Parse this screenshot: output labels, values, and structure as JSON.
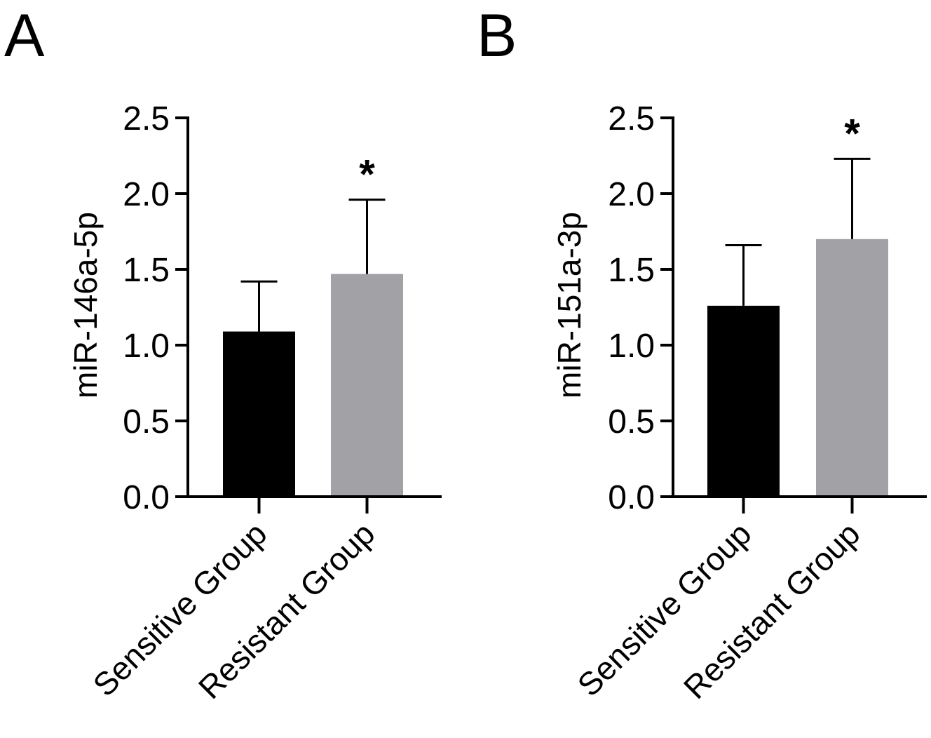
{
  "chart_data": [
    {
      "type": "bar",
      "panel_label": "A",
      "categories": [
        "Sensitive Group",
        "Resistant Group"
      ],
      "values": [
        1.09,
        1.47
      ],
      "error_upper": [
        1.42,
        1.96
      ],
      "ylabel": "miR-146a-5p",
      "xlabel": "",
      "ylim": [
        0,
        2.5
      ],
      "yticks": [
        0,
        0.5,
        1.0,
        1.5,
        2.0,
        2.5
      ],
      "ytick_labels": [
        "0.0",
        "0.5",
        "1.0",
        "1.5",
        "2.0",
        "2.5"
      ],
      "annotations": [
        "",
        "*"
      ],
      "colors": [
        "#000000",
        "#a2a1a6"
      ],
      "grid": false,
      "legend": "none"
    },
    {
      "type": "bar",
      "panel_label": "B",
      "categories": [
        "Sensitive Group",
        "Resistant Group"
      ],
      "values": [
        1.26,
        1.7
      ],
      "error_upper": [
        1.66,
        2.23
      ],
      "ylabel": "miR-151a-3p",
      "xlabel": "",
      "ylim": [
        0,
        2.5
      ],
      "yticks": [
        0,
        0.5,
        1.0,
        1.5,
        2.0,
        2.5
      ],
      "ytick_labels": [
        "0.0",
        "0.5",
        "1.0",
        "1.5",
        "2.0",
        "2.5"
      ],
      "annotations": [
        "",
        "*"
      ],
      "colors": [
        "#000000",
        "#a2a1a6"
      ],
      "grid": false,
      "legend": "none"
    }
  ]
}
